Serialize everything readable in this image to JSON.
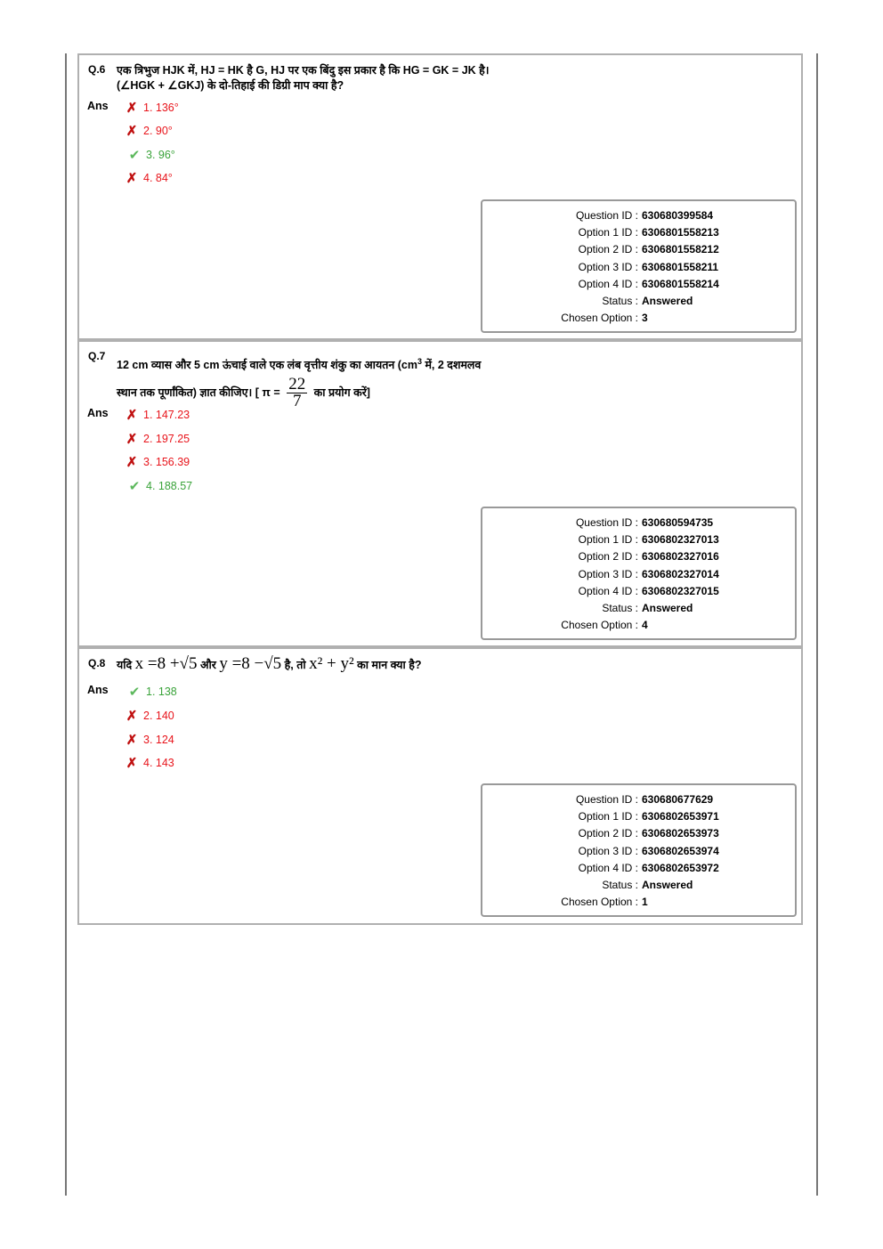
{
  "questions": [
    {
      "no": "Q.6",
      "text": "एक त्रिभुज HJK में, HJ = HK है G, HJ पर एक बिंदु इस प्रकार है कि HG = GK = JK है। (∠HGK + ∠GKJ) के दो-तिहाई की डिग्री माप क्या है?",
      "ans_label": "Ans",
      "options": [
        {
          "label": "1. 136°",
          "correct": false
        },
        {
          "label": "2. 90°",
          "correct": false
        },
        {
          "label": "3. 96°",
          "correct": true
        },
        {
          "label": "4. 84°",
          "correct": false
        }
      ],
      "info": {
        "question_id": "630680399584",
        "option1_id": "6306801558213",
        "option2_id": "6306801558212",
        "option3_id": "6306801558211",
        "option4_id": "6306801558214",
        "status": "Answered",
        "chosen": "3"
      }
    },
    {
      "no": "Q.7",
      "text_a": "12 cm व्यास और 5 cm ऊंचाई वाले एक लंब वृत्तीय शंकु का आयतन (cm",
      "text_sup": "3",
      "text_b": " में, 2 दशमलव स्थान तक पूर्णांकित) ज्ञात कीजिए। [ π = ",
      "frac_num": "22",
      "frac_den": "7",
      "text_c": " का प्रयोग करें]",
      "ans_label": "Ans",
      "options": [
        {
          "label": "1. 147.23",
          "correct": false
        },
        {
          "label": "2. 197.25",
          "correct": false
        },
        {
          "label": "3. 156.39",
          "correct": false
        },
        {
          "label": "4. 188.57",
          "correct": true
        }
      ],
      "info": {
        "question_id": "630680594735",
        "option1_id": "6306802327013",
        "option2_id": "6306802327016",
        "option3_id": "6306802327014",
        "option4_id": "6306802327015",
        "status": "Answered",
        "chosen": "4"
      }
    },
    {
      "no": "Q.8",
      "t1": "यदि ",
      "m1": "x =8 +√5",
      "t2": " और ",
      "m2": "y =8 −√5",
      "t3": " है, तो ",
      "m3": "x² + y²",
      "t4": " का मान क्या है?",
      "ans_label": "Ans",
      "options": [
        {
          "label": "1. 138",
          "correct": true
        },
        {
          "label": "2. 140",
          "correct": false
        },
        {
          "label": "3. 124",
          "correct": false
        },
        {
          "label": "4. 143",
          "correct": false
        }
      ],
      "info": {
        "question_id": "630680677629",
        "option1_id": "6306802653971",
        "option2_id": "6306802653973",
        "option3_id": "6306802653974",
        "option4_id": "6306802653972",
        "status": "Answered",
        "chosen": "1"
      }
    }
  ],
  "labels": {
    "question_id": "Question ID :",
    "option1_id": "Option 1 ID :",
    "option2_id": "Option 2 ID :",
    "option3_id": "Option 3 ID :",
    "option4_id": "Option 4 ID :",
    "status": "Status :",
    "chosen": "Chosen Option :"
  },
  "icons": {
    "wrong": "cross-icon",
    "right": "check-icon"
  },
  "colors": {
    "wrong": "#e8141b",
    "right": "#3aa33a"
  }
}
